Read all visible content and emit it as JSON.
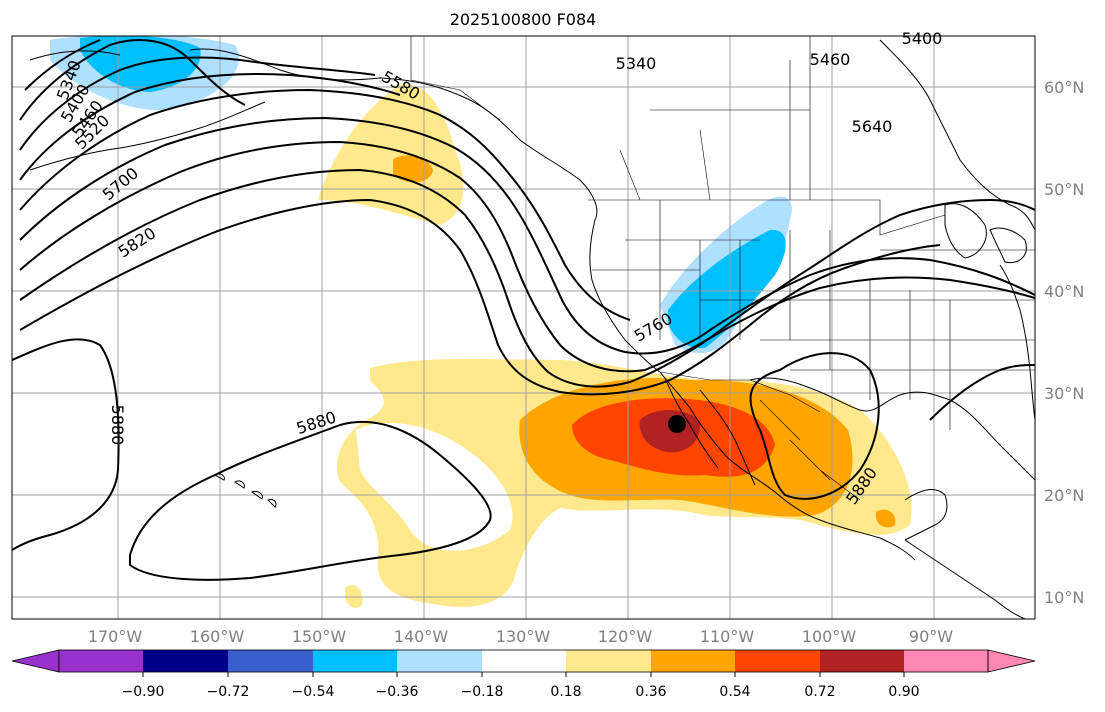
{
  "title": "2025100800 F084",
  "lat_labels": [
    "60°N",
    "50°N",
    "40°N",
    "30°N",
    "20°N",
    "10°N"
  ],
  "lon_labels": [
    "170°W",
    "160°W",
    "150°W",
    "140°W",
    "130°W",
    "120°W",
    "110°W",
    "100°W",
    "90°W"
  ],
  "contour_labels": [
    "5340",
    "5400",
    "5460",
    "5520",
    "5340",
    "5580",
    "5400",
    "5460",
    "5640",
    "5700",
    "5820",
    "5760",
    "5880",
    "5880",
    "5880"
  ],
  "colorbar": {
    "ticks": [
      "−0.90",
      "−0.72",
      "−0.54",
      "−0.36",
      "−0.18",
      "0.18",
      "0.36",
      "0.54",
      "0.72",
      "0.90"
    ],
    "colors": [
      "#9932cc",
      "#00008b",
      "#3a5fcd",
      "#00bfff",
      "#b0e0ff",
      "#ffffff",
      "#ffe98c",
      "#ffa500",
      "#ff4500",
      "#b22222",
      "#ff87b4"
    ]
  },
  "palette": {
    "light_yellow": "#ffe98c",
    "orange": "#ffa500",
    "red_orange": "#ff4500",
    "dark_red": "#b22222",
    "cyan": "#00bfff",
    "light_blue": "#b0e0ff"
  }
}
